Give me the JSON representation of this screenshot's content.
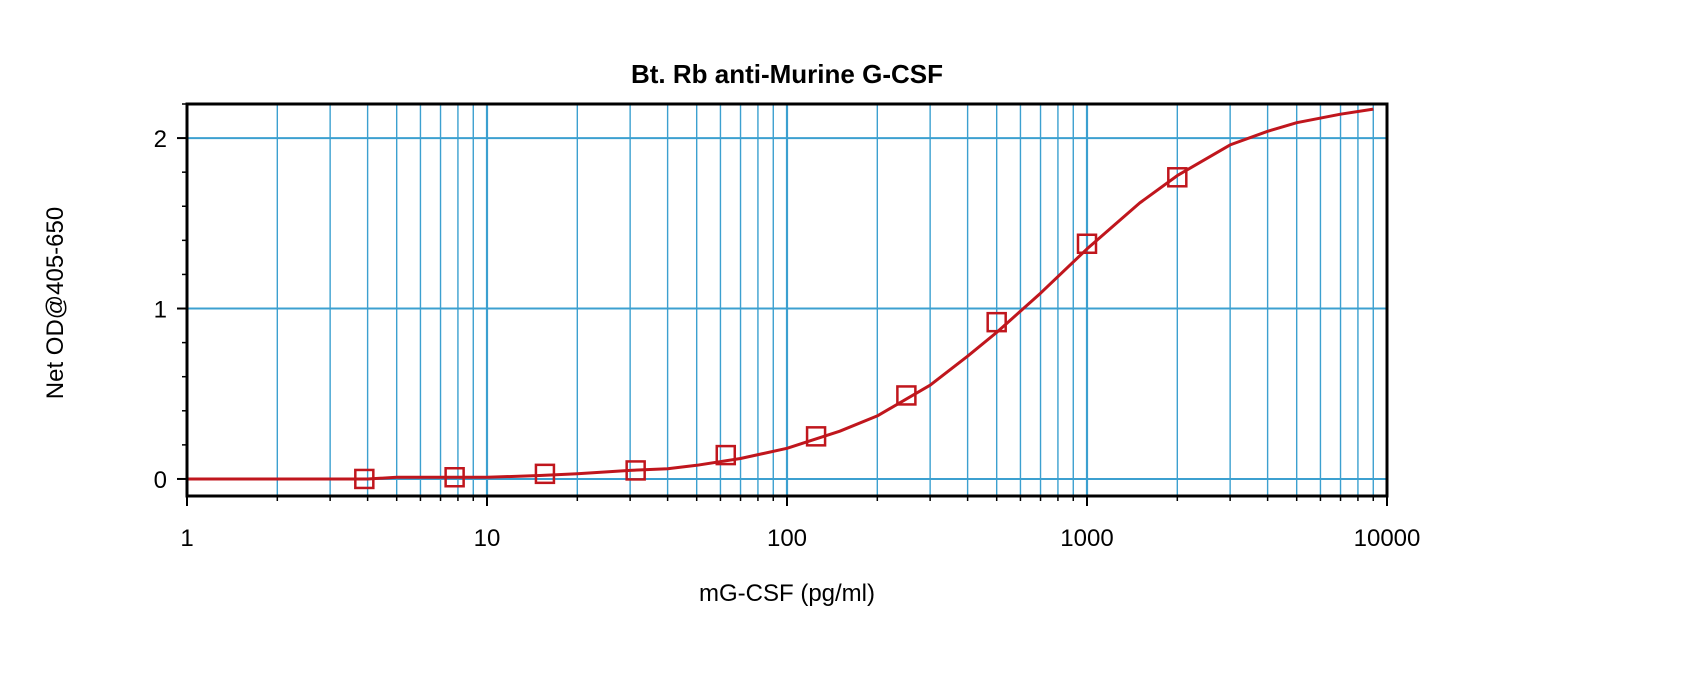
{
  "chart_data": {
    "type": "scatter",
    "title": "Bt. Rb anti-Murine G-CSF",
    "xlabel": "mG-CSF (pg/ml)",
    "ylabel": "Net OD@405-650",
    "x_scale": "log",
    "xlim": [
      1,
      10000
    ],
    "ylim": [
      -0.1,
      2.2
    ],
    "x_ticks": [
      "1",
      "10",
      "100",
      "1000",
      "10000"
    ],
    "y_ticks": [
      "0",
      "1",
      "2"
    ],
    "grid": true,
    "colors": {
      "grid": "#3ca0d0",
      "series": "#c0161d",
      "frame": "#000000"
    },
    "series": [
      {
        "marker": "square",
        "x": [
          3.9,
          7.8,
          15.6,
          31.3,
          62.5,
          125,
          250,
          500,
          1000,
          2000
        ],
        "y": [
          0.0,
          0.01,
          0.03,
          0.05,
          0.14,
          0.25,
          0.49,
          0.92,
          1.38,
          1.77
        ]
      }
    ],
    "fit_curve": {
      "type": "4PL",
      "x": [
        1,
        1.5,
        2,
        3,
        4,
        5,
        7,
        10,
        15,
        20,
        30,
        40,
        50,
        70,
        100,
        150,
        200,
        300,
        400,
        500,
        700,
        1000,
        1500,
        2000,
        3000,
        4000,
        5000,
        7000,
        9000
      ],
      "y": [
        0.0,
        0.0,
        0.0,
        0.0,
        0.0,
        0.01,
        0.01,
        0.01,
        0.02,
        0.03,
        0.05,
        0.06,
        0.08,
        0.12,
        0.18,
        0.28,
        0.37,
        0.55,
        0.72,
        0.86,
        1.09,
        1.35,
        1.62,
        1.78,
        1.96,
        2.04,
        2.09,
        2.14,
        2.17
      ]
    }
  }
}
